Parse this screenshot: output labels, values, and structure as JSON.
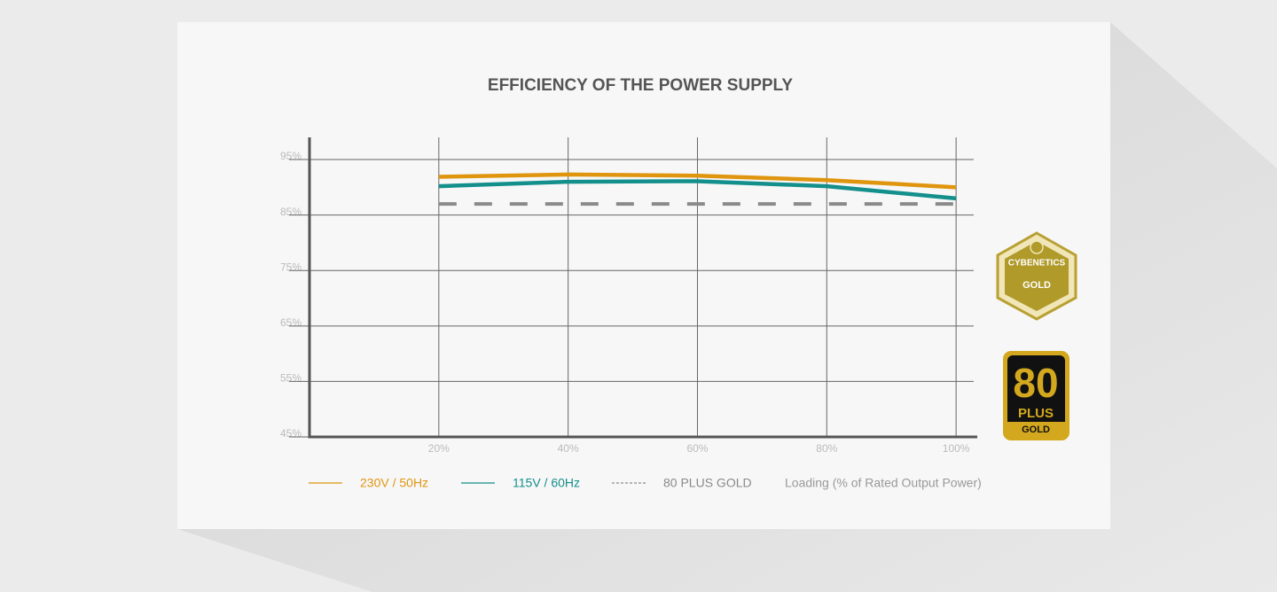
{
  "chart_data": {
    "type": "line",
    "title": "EFFICIENCY OF THE POWER SUPPLY",
    "x_label": "Loading (% of Rated Output Power)",
    "x": [
      20,
      40,
      60,
      80,
      100
    ],
    "series": [
      {
        "name": "230V / 50Hz",
        "color": "#e0950f",
        "values": [
          91.9,
          92.3,
          92.1,
          91.3,
          90
        ]
      },
      {
        "name": "115V / 60Hz",
        "color": "#138f8c",
        "values": [
          90.2,
          91,
          91.1,
          90.2,
          88
        ]
      },
      {
        "name": "80 PLUS GOLD",
        "color": "#8a8a8a",
        "dash": true,
        "values": [
          87,
          87,
          87,
          87,
          87
        ]
      }
    ],
    "xlim": [
      0,
      103
    ],
    "xticks": [
      {
        "value": 20,
        "label": "20%"
      },
      {
        "value": 40,
        "label": "40%"
      },
      {
        "value": 60,
        "label": "60%"
      },
      {
        "value": 80,
        "label": "80%"
      },
      {
        "value": 100,
        "label": "100%"
      }
    ],
    "ylim": [
      45,
      99
    ],
    "yticks": [
      {
        "value": 45,
        "label": "45%"
      },
      {
        "value": 55,
        "label": "55%"
      },
      {
        "value": 65,
        "label": "65%"
      },
      {
        "value": 75,
        "label": "75%"
      },
      {
        "value": 85,
        "label": "85%"
      },
      {
        "value": 95,
        "label": "95%"
      }
    ],
    "grid": true
  },
  "badges": {
    "cybenetics": {
      "name": "CYBENETICS",
      "level": "GOLD"
    },
    "plus80": {
      "number": "80",
      "name": "PLUS",
      "level": "GOLD"
    }
  }
}
